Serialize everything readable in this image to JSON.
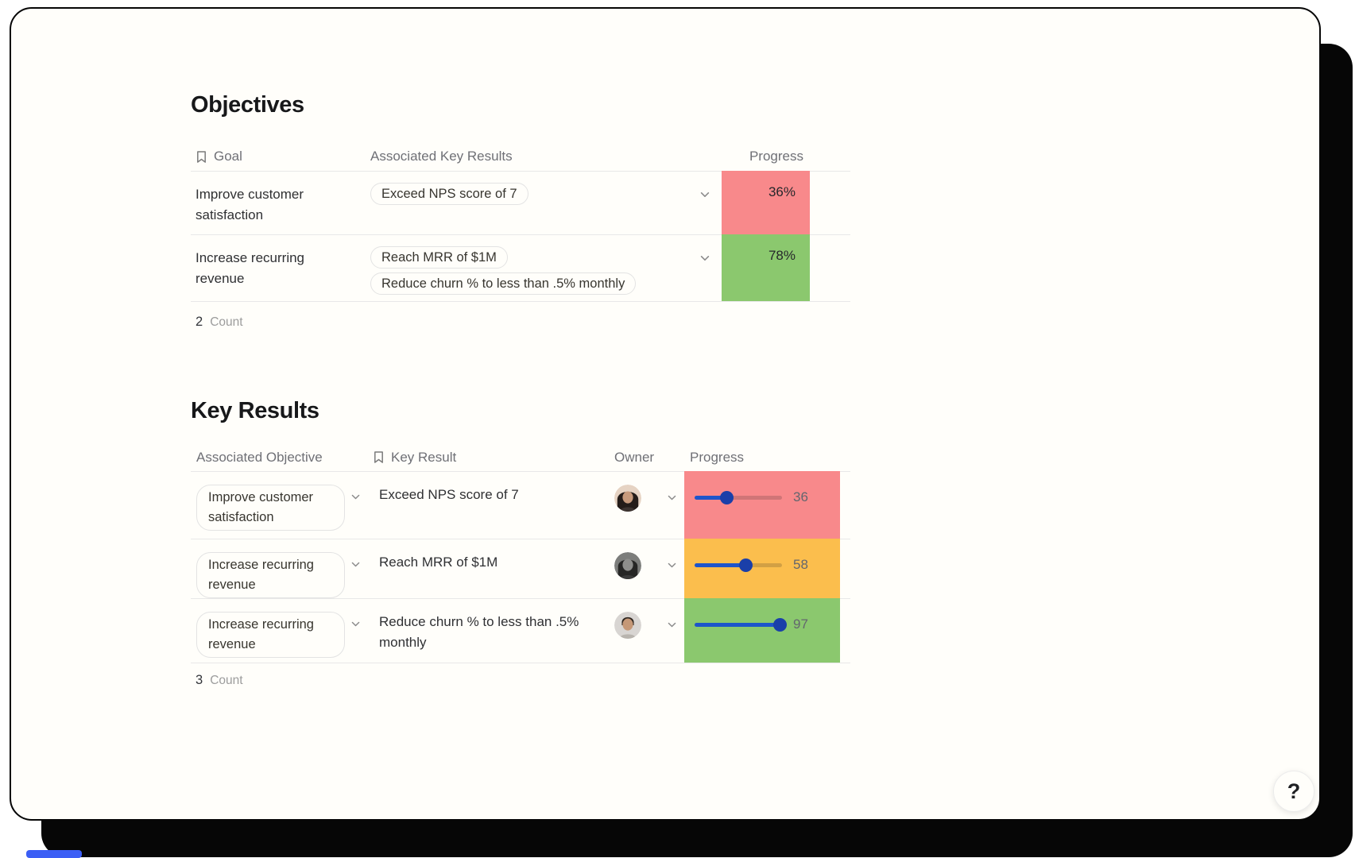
{
  "page": {
    "help_label": "?"
  },
  "colors": {
    "status_red": "#f8898b",
    "status_orange": "#fbbe4d",
    "status_green": "#8bc86e",
    "slider_blue": "#1d55cb",
    "card_border": "#060606",
    "accent_bottom_bar": "#3b5ef5"
  },
  "objectives": {
    "title": "Objectives",
    "columns": {
      "goal": "Goal",
      "key_results": "Associated Key Results",
      "progress": "Progress"
    },
    "rows": [
      {
        "goal": "Improve customer satisfaction",
        "key_results": [
          "Exceed NPS score of 7"
        ],
        "progress": "36%",
        "progress_color": "#f8898b"
      },
      {
        "goal": "Increase recurring revenue",
        "key_results": [
          "Reach MRR of $1M",
          "Reduce churn % to less than .5% monthly"
        ],
        "progress": "78%",
        "progress_color": "#8bc86e"
      }
    ],
    "count": {
      "value": "2",
      "label": "Count"
    }
  },
  "key_results": {
    "title": "Key Results",
    "columns": {
      "objective": "Associated Objective",
      "key_result": "Key Result",
      "owner": "Owner",
      "progress": "Progress"
    },
    "rows": [
      {
        "objective": "Improve customer satisfaction",
        "key_result": "Exceed NPS score of 7",
        "progress": 36,
        "cell_color": "#f8898b"
      },
      {
        "objective": "Increase recurring revenue",
        "key_result": "Reach MRR of $1M",
        "progress": 58,
        "cell_color": "#fbbe4d"
      },
      {
        "objective": "Increase recurring revenue",
        "key_result": "Reduce churn % to less than .5% monthly",
        "progress": 97,
        "cell_color": "#8bc86e"
      }
    ],
    "count": {
      "value": "3",
      "label": "Count"
    }
  }
}
